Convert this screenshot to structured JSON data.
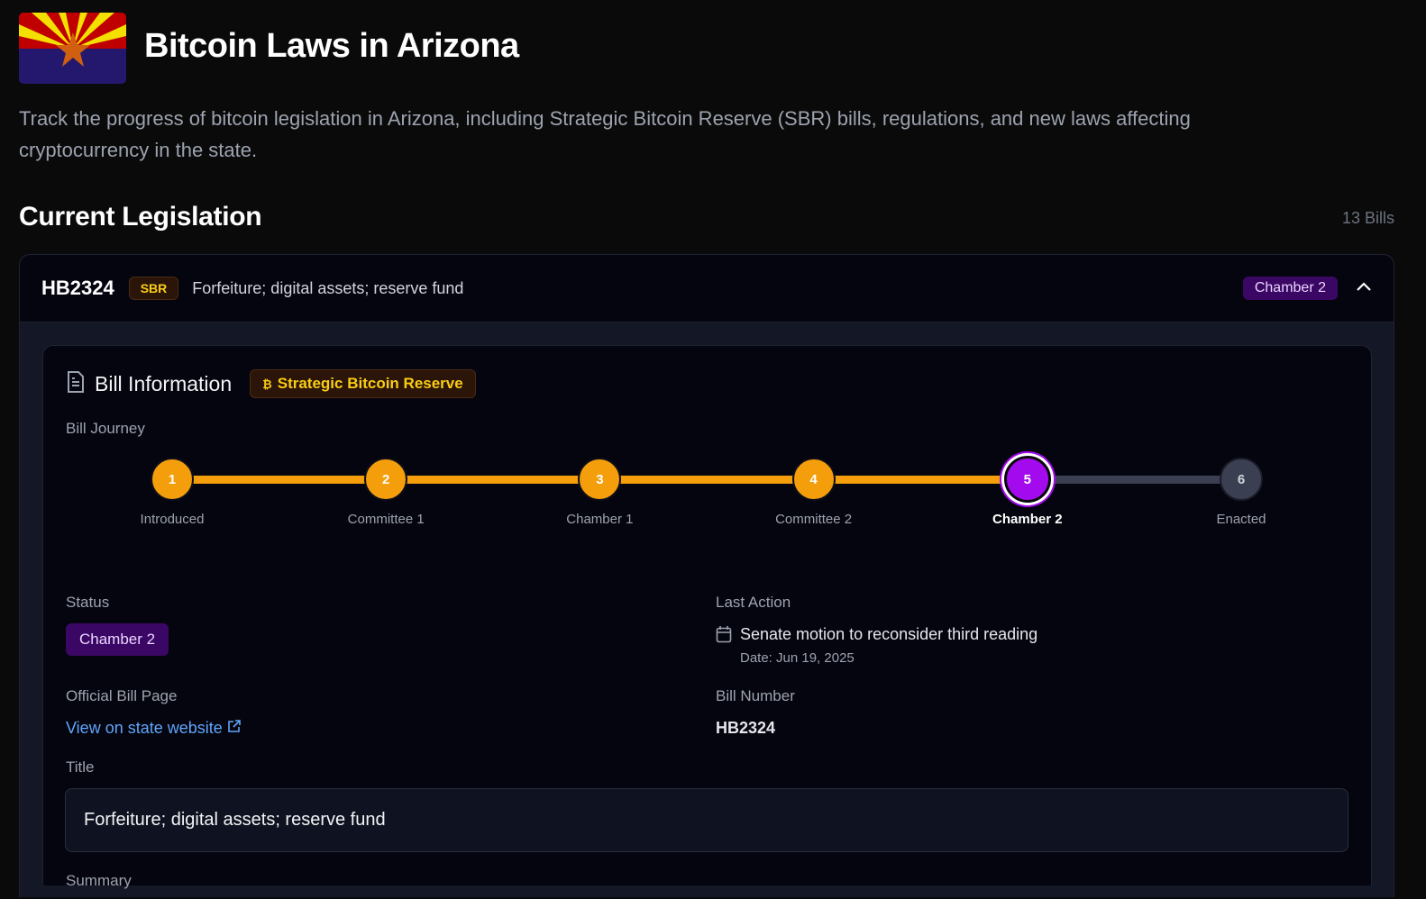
{
  "header": {
    "title": "Bitcoin Laws in Arizona",
    "description": "Track the progress of bitcoin legislation in Arizona, including Strategic Bitcoin Reserve (SBR) bills, regulations, and new laws affecting cryptocurrency in the state.",
    "flag_icon": "arizona-flag"
  },
  "section": {
    "title": "Current Legislation",
    "count": "13 Bills"
  },
  "bill": {
    "id": "HB2324",
    "tag": "SBR",
    "title": "Forfeiture; digital assets; reserve fund",
    "status": "Chamber 2",
    "expanded": true,
    "info": {
      "heading": "Bill Information",
      "category": "Strategic Bitcoin Reserve",
      "journey_label": "Bill Journey",
      "steps": [
        {
          "n": "1",
          "label": "Introduced"
        },
        {
          "n": "2",
          "label": "Committee 1"
        },
        {
          "n": "3",
          "label": "Chamber 1"
        },
        {
          "n": "4",
          "label": "Committee 2"
        },
        {
          "n": "5",
          "label": "Chamber 2"
        },
        {
          "n": "6",
          "label": "Enacted"
        }
      ],
      "current_step": 5,
      "status_label": "Status",
      "status": "Chamber 2",
      "last_action_label": "Last Action",
      "last_action": "Senate motion to reconsider third reading",
      "last_action_date": "Date: Jun 19, 2025",
      "official_label": "Official Bill Page",
      "official_link": "View on state website",
      "bill_number_label": "Bill Number",
      "bill_number": "HB2324",
      "title_label": "Title",
      "title": "Forfeiture; digital assets; reserve fund",
      "summary_label": "Summary"
    }
  },
  "colors": {
    "done": "#f59e0b",
    "current": "#a30aed",
    "pending": "#3b3f52",
    "accent_yellow": "#facc15"
  }
}
